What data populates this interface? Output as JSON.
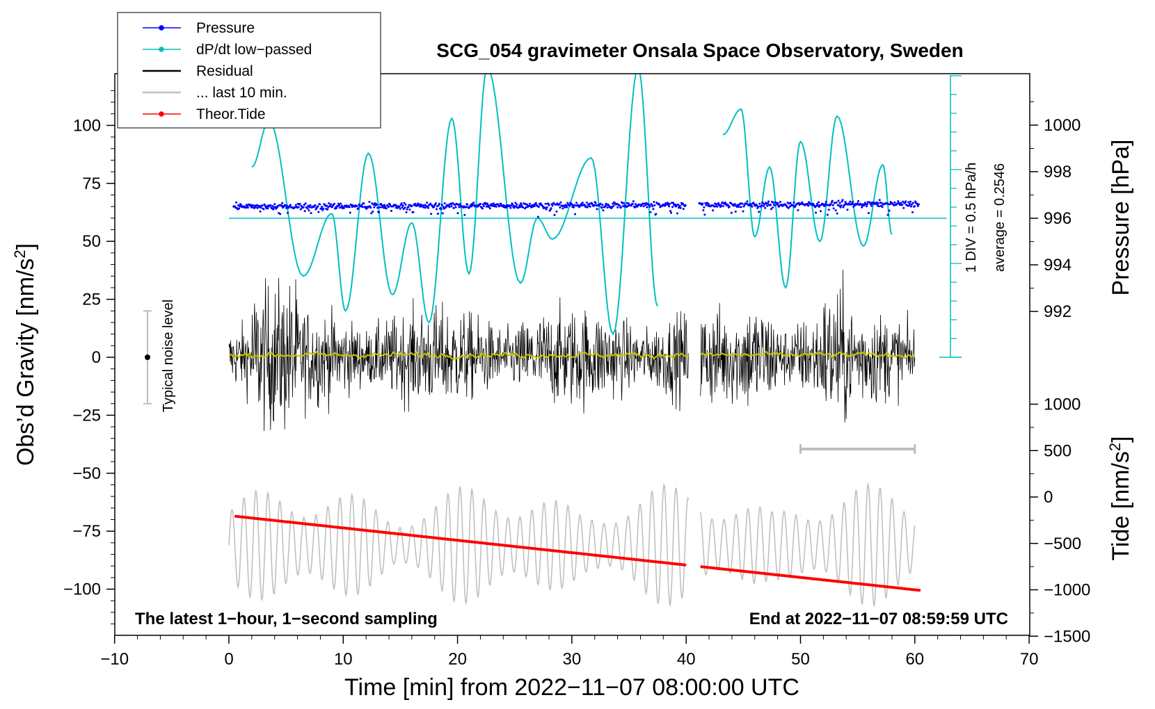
{
  "chart_data": {
    "type": "line",
    "title": "SCG_054 gravimeter Onsala Space Observatory, Sweden",
    "xlabel": "Time [min] from 2022−11−07 08:00:00 UTC",
    "ylabel_left_main": "Obs’d Gravity [nm/s",
    "ylabel_left_sup": "2",
    "ylabel_left_end": "]",
    "ylabel_right_top": "Pressure [hPa]",
    "ylabel_right_bottom_main": "Tide [nm/s",
    "ylabel_right_bottom_sup": "2",
    "ylabel_right_bottom_end": "]",
    "xlim": [
      -10,
      70
    ],
    "ylim_gravity": [
      -120,
      120
    ],
    "ylim_pressure": [
      990,
      1002
    ],
    "ylim_tide": [
      -1500,
      1500
    ],
    "x_ticks": [
      "−10",
      "0",
      "10",
      "20",
      "30",
      "40",
      "50",
      "60",
      "70"
    ],
    "x_tick_values": [
      -10,
      0,
      10,
      20,
      30,
      40,
      50,
      60,
      70
    ],
    "gravity_ticks": [
      "100",
      "75",
      "50",
      "25",
      "0",
      "−25",
      "−50",
      "−75",
      "−100"
    ],
    "gravity_tick_values": [
      100,
      75,
      50,
      25,
      0,
      -25,
      -50,
      -75,
      -100
    ],
    "pressure_ticks": [
      "1000",
      "998",
      "996",
      "994",
      "992"
    ],
    "pressure_tick_values": [
      1000,
      998,
      996,
      994,
      992
    ],
    "tide_ticks": [
      "1000",
      "500",
      "0",
      "−500",
      "−1000",
      "−1500"
    ],
    "tide_tick_values": [
      1000,
      500,
      0,
      -500,
      -1000,
      -1500
    ],
    "legend": [
      {
        "label": "Pressure",
        "color": "#0000ff",
        "marker": true
      },
      {
        "label": "dP/dt low−passed",
        "color": "#00c0c0",
        "marker": true
      },
      {
        "label": "Residual",
        "color": "#000000",
        "marker": false
      },
      {
        "label": "... last 10 min.",
        "color": "#c0c0c0",
        "marker": false
      },
      {
        "label": "Theor.Tide",
        "color": "#ff0000",
        "marker": true
      }
    ],
    "noise_label": "Typical noise level",
    "noise_range": [
      -20,
      20
    ],
    "scale_text_1": "1 DIV = 0.5 hPa/h",
    "scale_text_2": "average = 0.2546",
    "note_left": "The latest 1−hour, 1−second sampling",
    "note_right": "End at 2022−11−07 08:59:59 UTC",
    "gap_minutes": [
      40.2,
      41.2
    ],
    "last10_bar": [
      50,
      60
    ],
    "pressure_level_hPa": 996.5,
    "dpdt_baseline_hPa": 996,
    "dpdt_extrema": [
      {
        "t": 2.0,
        "v": 82
      },
      {
        "t": 3.5,
        "v": 102
      },
      {
        "t": 6.5,
        "v": 35
      },
      {
        "t": 9.0,
        "v": 62
      },
      {
        "t": 10.2,
        "v": 20
      },
      {
        "t": 12.2,
        "v": 88
      },
      {
        "t": 14.3,
        "v": 27
      },
      {
        "t": 16.0,
        "v": 58
      },
      {
        "t": 17.5,
        "v": 15
      },
      {
        "t": 19.5,
        "v": 103
      },
      {
        "t": 21.0,
        "v": 36
      },
      {
        "t": 22.6,
        "v": 125
      },
      {
        "t": 25.5,
        "v": 32
      },
      {
        "t": 27.0,
        "v": 60
      },
      {
        "t": 28.3,
        "v": 51
      },
      {
        "t": 31.7,
        "v": 86
      },
      {
        "t": 33.6,
        "v": 10
      },
      {
        "t": 35.8,
        "v": 125
      },
      {
        "t": 37.5,
        "v": 22
      },
      {
        "t": 43.2,
        "v": 96
      },
      {
        "t": 44.8,
        "v": 107
      },
      {
        "t": 46.0,
        "v": 52
      },
      {
        "t": 47.3,
        "v": 82
      },
      {
        "t": 48.7,
        "v": 30
      },
      {
        "t": 50.0,
        "v": 93
      },
      {
        "t": 51.7,
        "v": 50
      },
      {
        "t": 53.2,
        "v": 104
      },
      {
        "t": 55.5,
        "v": 48
      },
      {
        "t": 57.2,
        "v": 83
      },
      {
        "t": 58.0,
        "v": 53
      }
    ],
    "tide_start": -200,
    "tide_end": -1000,
    "colors": {
      "pressure": "#0000ff",
      "dpdt": "#00c0c0",
      "residual": "#000000",
      "residual_smooth": "#c8c800",
      "last10": "#c0c0c0",
      "tide": "#ff0000"
    }
  }
}
